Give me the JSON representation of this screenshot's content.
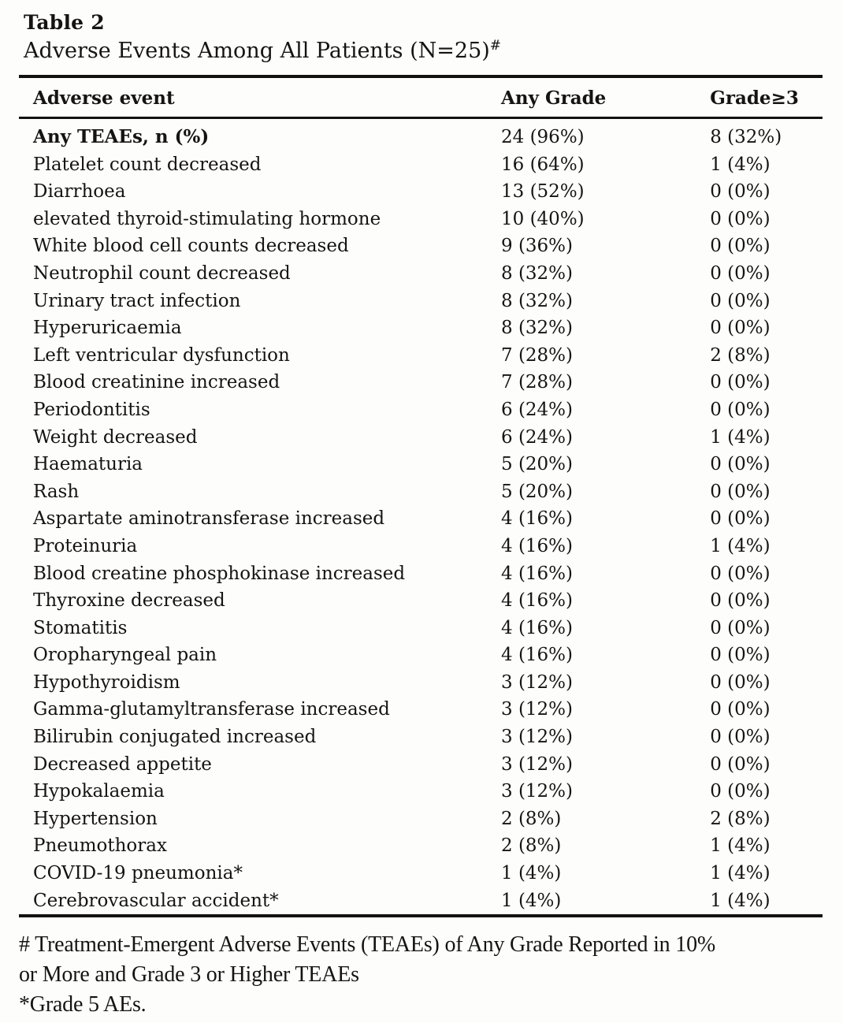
{
  "page": {
    "label": "Table 2",
    "caption": "Adverse Events Among All Patients (N=25)",
    "caption_sup": "#"
  },
  "table": {
    "columns": [
      "Adverse event",
      "Any Grade",
      "Grade≥3"
    ],
    "rows": [
      {
        "event": "Any TEAEs, n (%)",
        "any_grade": "24 (96%)",
        "grade_ge3": "8 (32%)",
        "bold": true
      },
      {
        "event": "Platelet count decreased",
        "any_grade": "16 (64%)",
        "grade_ge3": "1 (4%)",
        "bold": false
      },
      {
        "event": "Diarrhoea",
        "any_grade": "13 (52%)",
        "grade_ge3": "0 (0%)",
        "bold": false
      },
      {
        "event": "elevated thyroid-stimulating hormone",
        "any_grade": "10 (40%)",
        "grade_ge3": "0 (0%)",
        "bold": false
      },
      {
        "event": "White blood cell counts decreased",
        "any_grade": "9 (36%)",
        "grade_ge3": "0 (0%)",
        "bold": false
      },
      {
        "event": "Neutrophil count decreased",
        "any_grade": "8 (32%)",
        "grade_ge3": "0 (0%)",
        "bold": false
      },
      {
        "event": "Urinary tract infection",
        "any_grade": "8 (32%)",
        "grade_ge3": "0 (0%)",
        "bold": false
      },
      {
        "event": "Hyperuricaemia",
        "any_grade": "8 (32%)",
        "grade_ge3": "0 (0%)",
        "bold": false
      },
      {
        "event": "Left ventricular dysfunction",
        "any_grade": "7 (28%)",
        "grade_ge3": "2 (8%)",
        "bold": false
      },
      {
        "event": "Blood creatinine increased",
        "any_grade": "7 (28%)",
        "grade_ge3": "0 (0%)",
        "bold": false
      },
      {
        "event": "Periodontitis",
        "any_grade": "6 (24%)",
        "grade_ge3": "0 (0%)",
        "bold": false
      },
      {
        "event": "Weight decreased",
        "any_grade": "6 (24%)",
        "grade_ge3": "1 (4%)",
        "bold": false
      },
      {
        "event": "Haematuria",
        "any_grade": "5 (20%)",
        "grade_ge3": "0 (0%)",
        "bold": false
      },
      {
        "event": "Rash",
        "any_grade": "5 (20%)",
        "grade_ge3": "0 (0%)",
        "bold": false
      },
      {
        "event": "Aspartate aminotransferase increased",
        "any_grade": "4 (16%)",
        "grade_ge3": "0 (0%)",
        "bold": false
      },
      {
        "event": "Proteinuria",
        "any_grade": "4 (16%)",
        "grade_ge3": "1 (4%)",
        "bold": false
      },
      {
        "event": "Blood creatine phosphokinase increased",
        "any_grade": "4 (16%)",
        "grade_ge3": "0 (0%)",
        "bold": false
      },
      {
        "event": "Thyroxine decreased",
        "any_grade": "4 (16%)",
        "grade_ge3": "0 (0%)",
        "bold": false
      },
      {
        "event": "Stomatitis",
        "any_grade": "4 (16%)",
        "grade_ge3": "0 (0%)",
        "bold": false
      },
      {
        "event": "Oropharyngeal pain",
        "any_grade": "4 (16%)",
        "grade_ge3": "0 (0%)",
        "bold": false
      },
      {
        "event": "Hypothyroidism",
        "any_grade": "3 (12%)",
        "grade_ge3": "0 (0%)",
        "bold": false
      },
      {
        "event": "Gamma-glutamyltransferase increased",
        "any_grade": "3 (12%)",
        "grade_ge3": "0 (0%)",
        "bold": false
      },
      {
        "event": "Bilirubin conjugated increased",
        "any_grade": "3 (12%)",
        "grade_ge3": "0 (0%)",
        "bold": false
      },
      {
        "event": "Decreased appetite",
        "any_grade": "3 (12%)",
        "grade_ge3": "0 (0%)",
        "bold": false
      },
      {
        "event": "Hypokalaemia",
        "any_grade": "3 (12%)",
        "grade_ge3": "0 (0%)",
        "bold": false
      },
      {
        "event": "Hypertension",
        "any_grade": "2 (8%)",
        "grade_ge3": "2 (8%)",
        "bold": false
      },
      {
        "event": "Pneumothorax",
        "any_grade": "2 (8%)",
        "grade_ge3": "1 (4%)",
        "bold": false
      },
      {
        "event": "COVID-19 pneumonia*",
        "any_grade": "1 (4%)",
        "grade_ge3": "1 (4%)",
        "bold": false
      },
      {
        "event": "Cerebrovascular accident*",
        "any_grade": "1 (4%)",
        "grade_ge3": "1 (4%)",
        "bold": false
      }
    ],
    "footnote_lines": [
      "# Treatment-Emergent Adverse Events (TEAEs) of Any Grade Reported in 10%",
      "or More and Grade 3 or Higher TEAEs",
      "*Grade 5 AEs."
    ]
  }
}
